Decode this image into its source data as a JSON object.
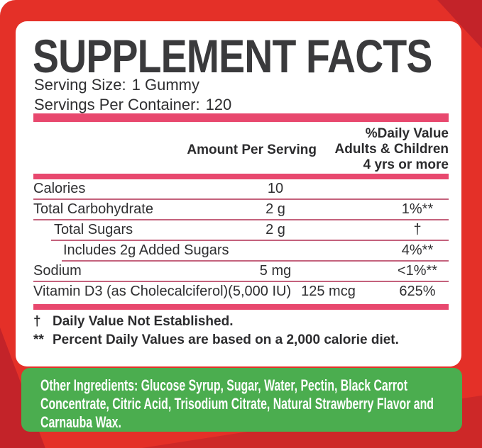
{
  "panel": {
    "title": "SUPPLEMENT FACTS",
    "serving_size": {
      "label": "Serving Size:",
      "value": "1 Gummy"
    },
    "servings_per_container": {
      "label": "Servings Per Container:",
      "value": "120"
    },
    "header": {
      "amount": "Amount Per Serving",
      "dv_line1": "%Daily Value",
      "dv_line2": "Adults & Children",
      "dv_line3": "4 yrs or more"
    },
    "rows": [
      {
        "name": "Calories",
        "amount": "10",
        "dv": ""
      },
      {
        "name": "Total Carbohydrate",
        "amount": "2 g",
        "dv": "1%**"
      },
      {
        "name": "Total Sugars",
        "amount": "2 g",
        "dv": "†"
      },
      {
        "name": "Includes 2g Added Sugars",
        "amount": "",
        "dv": "4%**"
      },
      {
        "name": "Sodium",
        "amount": "5 mg",
        "dv": "<1%**"
      },
      {
        "name": "Vitamin D3 (as Cholecalciferol)(5,000 IU)",
        "amount": "125 mcg",
        "dv": "625%"
      }
    ],
    "footnotes": [
      {
        "symbol": "†",
        "text": "Daily Value Not Established."
      },
      {
        "symbol": "**",
        "text": "Percent Daily Values are based on a 2,000 calorie diet."
      }
    ]
  },
  "ingredients": {
    "label": "Other Ingredients:",
    "text": " Glucose Syrup, Sugar, Water, Pectin, Black Carrot Concentrate, Citric Acid, Trisodium Citrate, Natural  Strawberry Flavor and Carnauba Wax."
  },
  "colors": {
    "background_red": "#e43028",
    "background_red_dark": "#c32329",
    "divider_pink": "#e8486e",
    "separator_pink": "#c4627c",
    "ingredients_green": "#4bad4f",
    "text_dark": "#2f2f31",
    "text_white": "#ffffff"
  }
}
